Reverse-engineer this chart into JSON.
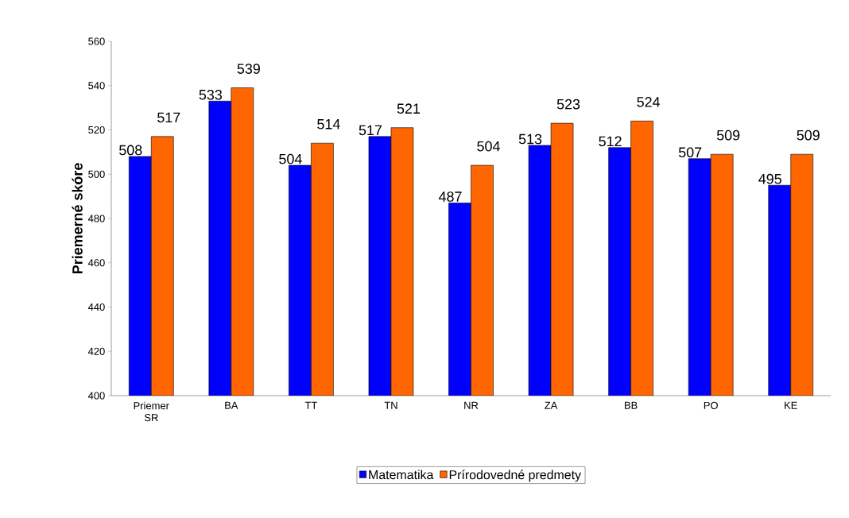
{
  "chart_data": {
    "type": "bar",
    "ylabel": "Priemerné skóre",
    "categories": [
      "Priemer SR",
      "BA",
      "TT",
      "TN",
      "NR",
      "ZA",
      "BB",
      "PO",
      "KE"
    ],
    "series": [
      {
        "name": "Matematika",
        "color": "#0000ff",
        "values": [
          508,
          533,
          504,
          517,
          487,
          513,
          512,
          507,
          495
        ]
      },
      {
        "name": "Prírodovedné predmety",
        "color": "#ff6600",
        "values": [
          517,
          539,
          514,
          521,
          504,
          523,
          524,
          509,
          509
        ]
      }
    ],
    "ylim": [
      400,
      560
    ],
    "yticks": [
      400,
      420,
      440,
      460,
      480,
      500,
      520,
      540,
      560
    ],
    "data_labels": true,
    "legend": "bottom"
  }
}
